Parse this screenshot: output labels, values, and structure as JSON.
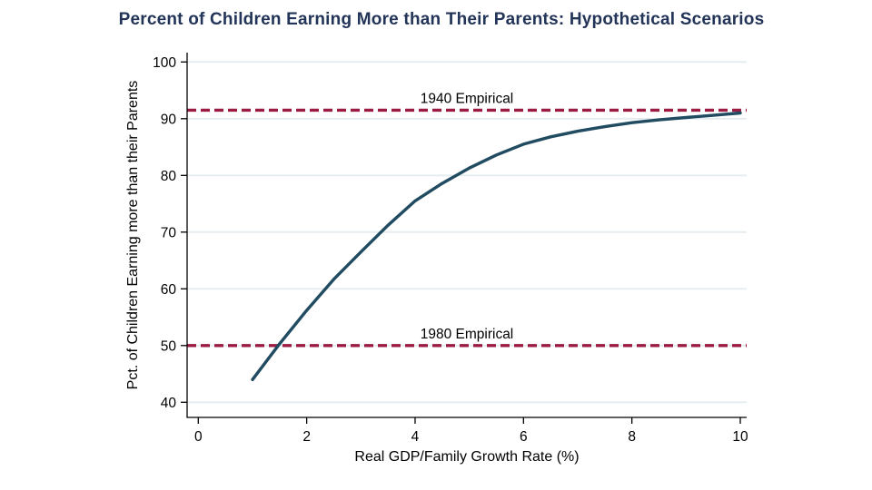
{
  "chart_data": {
    "type": "line",
    "title": "Percent of Children Earning More than Their Parents: Hypothetical Scenarios",
    "xlabel": "Real GDP/Family Growth Rate (%)",
    "ylabel": "Pct. of Children Earning more than their Parents",
    "xlim": [
      0,
      10
    ],
    "ylim": [
      40,
      100
    ],
    "x_ticks": [
      0,
      2,
      4,
      6,
      8,
      10
    ],
    "y_ticks": [
      40,
      50,
      60,
      70,
      80,
      90,
      100
    ],
    "grid": "horizontal",
    "legend": "none",
    "series": [
      {
        "color": "#204b61",
        "x": [
          1,
          1.5,
          2,
          2.5,
          3,
          3.5,
          4,
          4.5,
          5,
          5.5,
          6,
          6.5,
          7,
          7.5,
          8,
          8.5,
          9,
          9.5,
          10
        ],
        "y": [
          44,
          50.3,
          56.2,
          61.7,
          66.5,
          71.2,
          75.5,
          78.6,
          81.3,
          83.6,
          85.5,
          86.8,
          87.8,
          88.6,
          89.3,
          89.8,
          90.2,
          90.6,
          91.0
        ]
      }
    ],
    "reference_lines": [
      {
        "label": "1940 Empirical",
        "value": 91.5,
        "color": "#9c1b42",
        "style": "dashed"
      },
      {
        "label": "1980 Empirical",
        "value": 50.0,
        "color": "#9c1b42",
        "style": "dashed"
      }
    ],
    "colors": {
      "grid": "#e4ecef",
      "axis": "#000000",
      "text": "#000000",
      "title": "#223458",
      "background": "#ffffff"
    }
  }
}
